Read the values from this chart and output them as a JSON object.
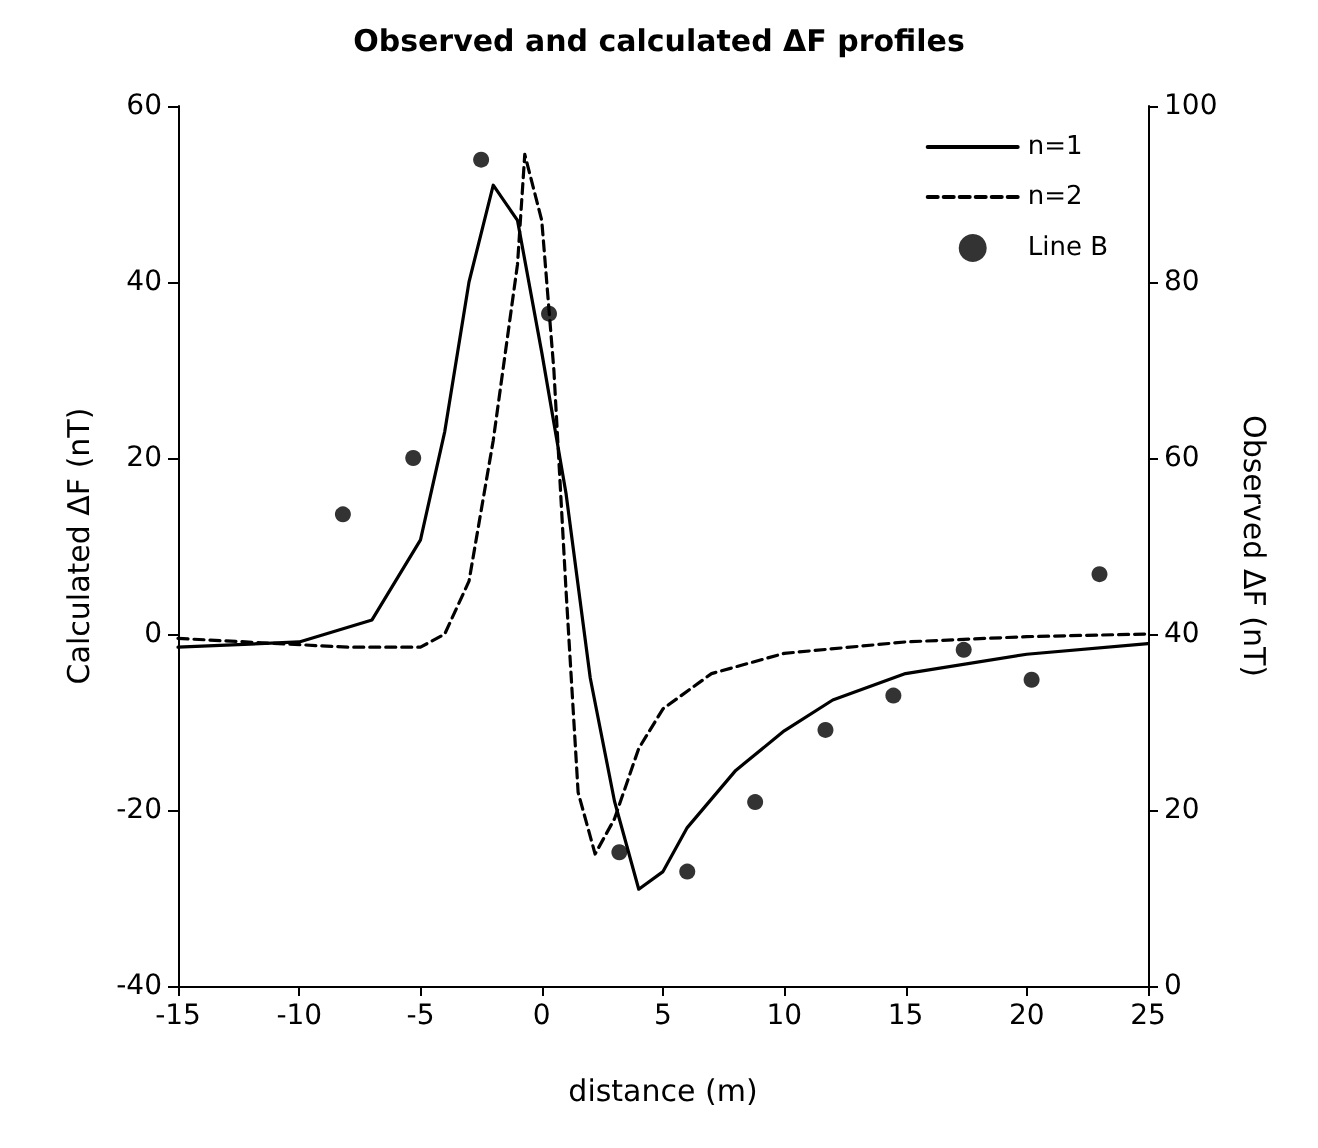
{
  "chart_data": {
    "type": "line",
    "title": "Observed and calculated ΔF profiles",
    "xlabel": "distance (m)",
    "ylabel": "Calculated ΔF (nT)",
    "y2label": "Observed ΔF (nT)",
    "xlim": [
      -15,
      25
    ],
    "xticks": [
      -15,
      -10,
      -5,
      0,
      5,
      10,
      15,
      20,
      25
    ],
    "ylim": [
      -40,
      60
    ],
    "yticks": [
      -40,
      -20,
      0,
      20,
      40,
      60
    ],
    "y2lim": [
      0,
      100
    ],
    "y2ticks": [
      0,
      20,
      40,
      60,
      80,
      100
    ],
    "grid": false,
    "legend": "top right",
    "series": [
      {
        "name": "n=1",
        "color": "#000000",
        "line_style": "solid",
        "marker": "none",
        "x": [
          -15,
          -10,
          -7,
          -5,
          -4,
          -3,
          -2,
          -1,
          0,
          1,
          2,
          3,
          4,
          5,
          6,
          8,
          10,
          12,
          15,
          20,
          25
        ],
        "values": [
          -1.5,
          -0.9,
          1.6,
          10.7,
          23,
          40,
          51,
          47,
          32,
          16,
          -5,
          -19,
          -29,
          -27,
          -22,
          -15.5,
          -11,
          -7.5,
          -4.5,
          -2.3,
          -1.1
        ]
      },
      {
        "name": "n=2",
        "color": "#000000",
        "line_style": "dashed",
        "marker": "none",
        "x": [
          -15,
          -8,
          -5,
          -4,
          -3,
          -2,
          -1,
          -0.7,
          0,
          0.5,
          1,
          1.5,
          2.2,
          3,
          4,
          5,
          7,
          10,
          15,
          20,
          25
        ],
        "values": [
          -0.5,
          -1.5,
          -1.5,
          0,
          6,
          22,
          42,
          54.5,
          47,
          30,
          5,
          -18,
          -25,
          -21,
          -13,
          -8.5,
          -4.5,
          -2.2,
          -0.9,
          -0.3,
          0
        ]
      },
      {
        "name": "Line B",
        "type": "scatter",
        "axis": "y2",
        "color": "#000000",
        "marker": "circle",
        "x": [
          -8.2,
          -5.3,
          -2.5,
          0.3,
          3.2,
          6.0,
          8.8,
          11.7,
          14.5,
          17.4,
          20.2,
          23.0
        ],
        "values": [
          53.6,
          60,
          93.9,
          76.4,
          15.2,
          13,
          20.9,
          29.1,
          33,
          38.2,
          34.8,
          46.8
        ]
      }
    ]
  }
}
